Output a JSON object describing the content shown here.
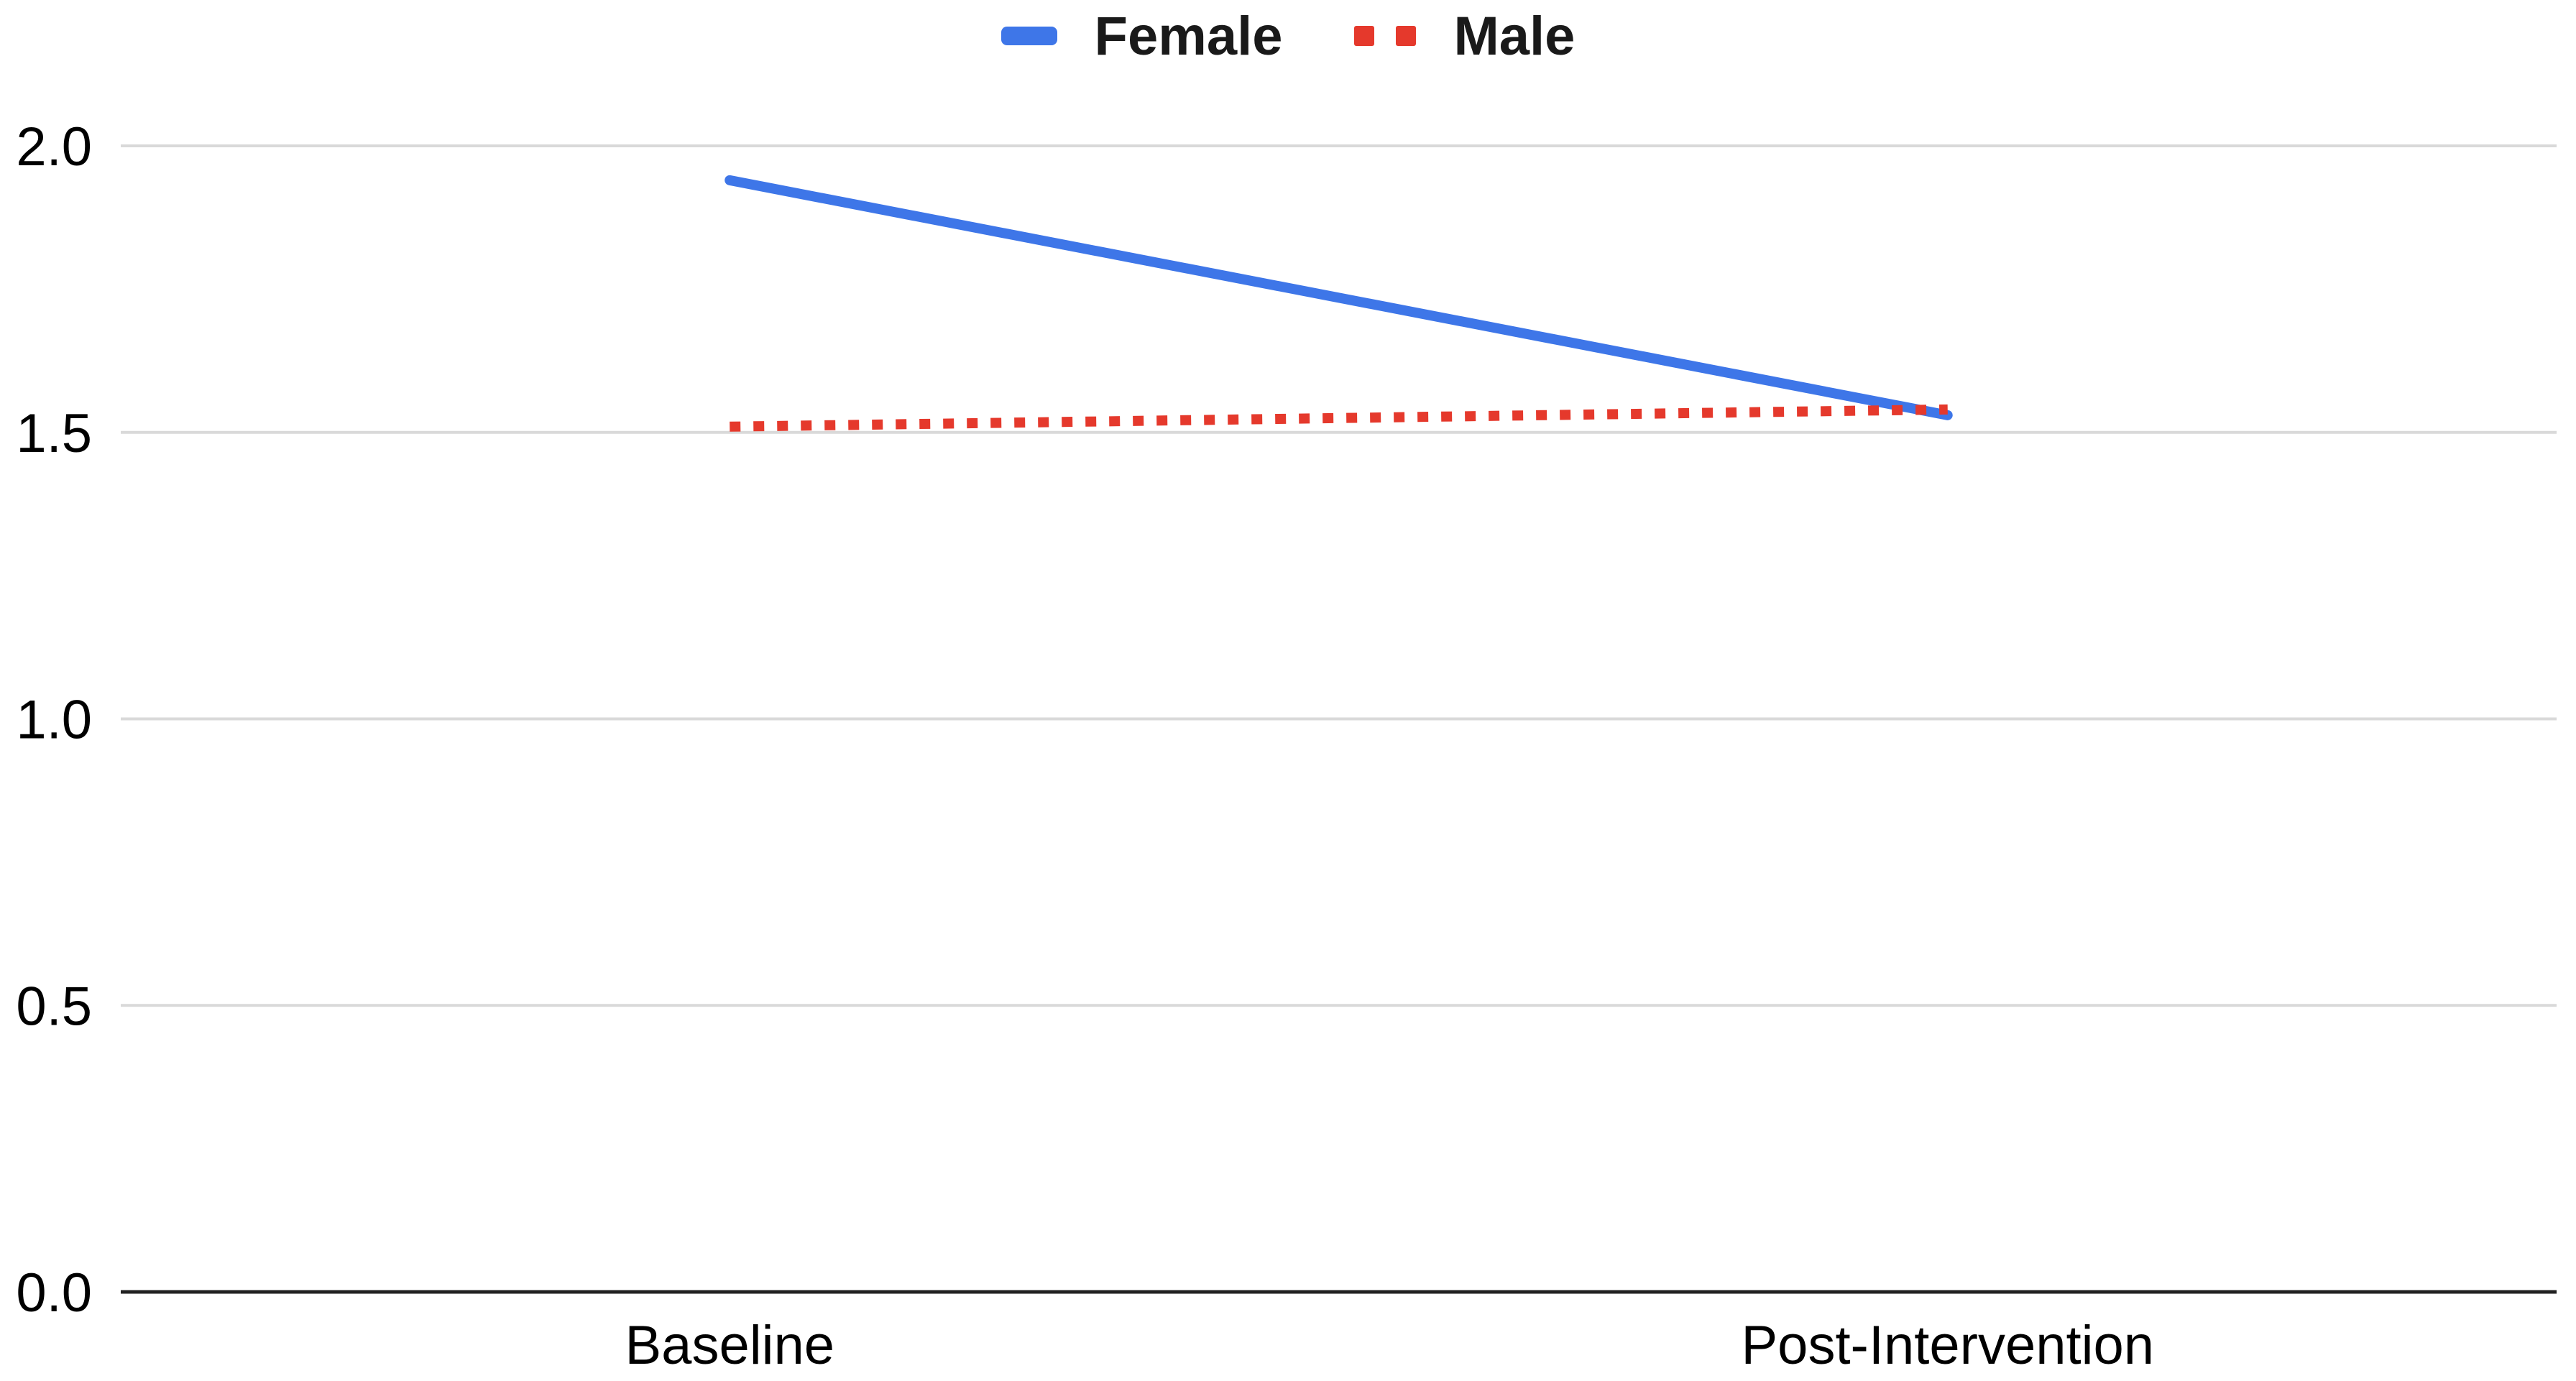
{
  "chart_data": {
    "type": "line",
    "categories": [
      "Baseline",
      "Post-Intervention"
    ],
    "series": [
      {
        "name": "Female",
        "values": [
          1.94,
          1.53
        ],
        "color": "#3E76E8",
        "line_style": "solid"
      },
      {
        "name": "Male",
        "values": [
          1.51,
          1.54
        ],
        "color": "#E5392C",
        "line_style": "dotted"
      }
    ],
    "title": "",
    "xlabel": "",
    "ylabel": "",
    "ylim": [
      0.0,
      2.0
    ],
    "yticks": [
      0.0,
      0.5,
      1.0,
      1.5,
      2.0
    ],
    "ytick_labels": [
      "0.0",
      "0.5",
      "1.0",
      "1.5",
      "2.0"
    ],
    "grid": true,
    "legend_position": "top-center",
    "colors": {
      "gridline": "#D9D9D9",
      "axis_line": "#212121",
      "tick_text": "#000000",
      "category_text": "#000000",
      "legend_text": "#1A1A1A",
      "background": "#FFFFFF"
    }
  }
}
